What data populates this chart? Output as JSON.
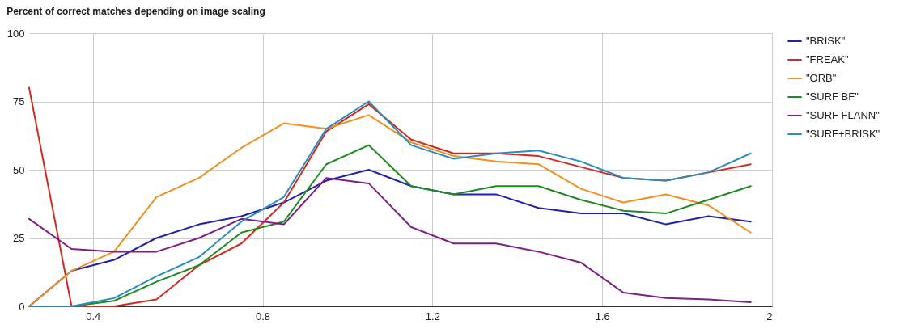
{
  "chart_data": {
    "type": "line",
    "title": "Percent of correct matches depending on image scaling",
    "x": [
      0.25,
      0.35,
      0.45,
      0.55,
      0.65,
      0.75,
      0.85,
      0.95,
      1.05,
      1.15,
      1.25,
      1.35,
      1.45,
      1.55,
      1.65,
      1.75,
      1.85,
      1.95
    ],
    "series": [
      {
        "name": "\"BRISK\"",
        "color": "#1f22a8",
        "values": [
          0,
          13,
          17,
          25,
          30,
          33,
          38,
          46,
          50,
          44,
          41,
          41,
          36,
          34,
          34,
          30,
          33,
          31
        ]
      },
      {
        "name": "\"FREAK\"",
        "color": "#d42a1e",
        "values": [
          80,
          0,
          0,
          2.5,
          15,
          23,
          38,
          64,
          74,
          61,
          56,
          56,
          55,
          51,
          47,
          46,
          49,
          52
        ]
      },
      {
        "name": "\"ORB\"",
        "color": "#f0901e",
        "values": [
          0,
          13,
          20,
          40,
          47,
          58,
          67,
          65,
          70,
          60,
          55,
          53,
          52,
          43,
          38,
          41,
          37,
          27
        ]
      },
      {
        "name": "\"SURF BF\"",
        "color": "#1f8a22",
        "values": [
          0,
          0,
          2,
          9,
          15,
          27,
          31,
          52,
          59,
          44,
          41,
          44,
          44,
          39,
          35,
          34,
          39,
          44
        ]
      },
      {
        "name": "\"SURF FLANN\"",
        "color": "#7d1f86",
        "values": [
          32,
          21,
          20,
          20,
          25,
          32,
          30,
          47,
          45,
          29,
          23,
          23,
          20,
          16,
          5,
          3,
          2.5,
          1.5
        ]
      },
      {
        "name": "\"SURF+BRISK\"",
        "color": "#2a8cbc",
        "values": [
          0,
          0,
          3,
          11,
          18,
          31,
          40,
          65,
          75,
          59,
          54,
          56,
          57,
          53,
          47,
          46,
          49,
          56
        ]
      }
    ],
    "xlim": [
      0.25,
      2
    ],
    "xticks": [
      0.4,
      0.8,
      1.2,
      1.6,
      2
    ],
    "ylim": [
      0,
      100
    ],
    "yticks": [
      0,
      25,
      50,
      75,
      100
    ],
    "grid": true,
    "legend": "top right",
    "marker": "none",
    "line_style": "solid"
  }
}
